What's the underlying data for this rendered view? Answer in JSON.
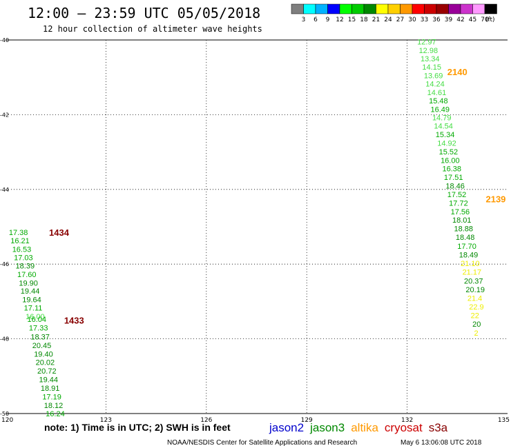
{
  "header": {
    "title": "12:00 — 23:59 UTC 05/05/2018",
    "subtitle": "12 hour collection of altimeter wave heights"
  },
  "color_scale": {
    "unit": "(ft)",
    "bins": [
      {
        "label": "3",
        "color": "#7f7f7f"
      },
      {
        "label": "6",
        "color": "#00ffff"
      },
      {
        "label": "9",
        "color": "#00b2ff"
      },
      {
        "label": "12",
        "color": "#0000ff"
      },
      {
        "label": "15",
        "color": "#00ff00"
      },
      {
        "label": "18",
        "color": "#00cc00"
      },
      {
        "label": "21",
        "color": "#008800"
      },
      {
        "label": "24",
        "color": "#ffff00"
      },
      {
        "label": "27",
        "color": "#ffd000"
      },
      {
        "label": "30",
        "color": "#ff9900"
      },
      {
        "label": "33",
        "color": "#ff0000"
      },
      {
        "label": "36",
        "color": "#cc0000"
      },
      {
        "label": "39",
        "color": "#990000"
      },
      {
        "label": "42",
        "color": "#990099"
      },
      {
        "label": "45",
        "color": "#cc33cc"
      },
      {
        "label": "70",
        "color": "#ff99ff"
      },
      {
        "label": "",
        "color": "#000000"
      }
    ]
  },
  "footer": {
    "note": "note: 1) Time is in UTC; 2) SWH is in feet",
    "satellites": [
      {
        "name": "jason2",
        "color": "#0000cc"
      },
      {
        "name": "jason3",
        "color": "#008800"
      },
      {
        "name": "altika",
        "color": "#ff9900"
      },
      {
        "name": "cryosat",
        "color": "#cc0000"
      },
      {
        "name": "s3a",
        "color": "#880000"
      }
    ],
    "credit": "NOAA/NESDIS Center for Satellite Applications and Research",
    "timestamp": "May  6 13:06:08 UTC 2018"
  },
  "chart_data": {
    "type": "scatter",
    "xlim": [
      120,
      135
    ],
    "ylim": [
      -50,
      -40
    ],
    "x_ticks": [
      "120",
      "123",
      "126",
      "129",
      "132",
      "135"
    ],
    "y_ticks": [
      "-40",
      "-42",
      "-44",
      "-46",
      "-48",
      "-50"
    ],
    "grid": true,
    "time_labels": [
      {
        "text": "2140",
        "x": 133.2,
        "y": -40.85,
        "color": "#ff9900"
      },
      {
        "text": "2139",
        "x": 134.35,
        "y": -44.25,
        "color": "#ff9900"
      },
      {
        "text": "1434",
        "x": 121.3,
        "y": -45.15,
        "color": "#880000"
      },
      {
        "text": "1433",
        "x": 121.75,
        "y": -47.5,
        "color": "#880000"
      }
    ],
    "tracks": [
      {
        "name": "altika",
        "points": [
          {
            "x": 132.3,
            "y": -40.05,
            "value": "12.97",
            "color": "#44dd44"
          },
          {
            "x": 132.35,
            "y": -40.28,
            "value": "12.98",
            "color": "#44dd44"
          },
          {
            "x": 132.4,
            "y": -40.5,
            "value": "13.34",
            "color": "#44dd44"
          },
          {
            "x": 132.45,
            "y": -40.72,
            "value": "14.15",
            "color": "#44dd44"
          },
          {
            "x": 132.5,
            "y": -40.95,
            "value": "13.69",
            "color": "#44dd44"
          },
          {
            "x": 132.55,
            "y": -41.17,
            "value": "14.24",
            "color": "#44dd44"
          },
          {
            "x": 132.6,
            "y": -41.4,
            "value": "14.61",
            "color": "#44dd44"
          },
          {
            "x": 132.65,
            "y": -41.62,
            "value": "15.48",
            "color": "#00aa00"
          },
          {
            "x": 132.7,
            "y": -41.85,
            "value": "16.49",
            "color": "#00aa00"
          },
          {
            "x": 132.75,
            "y": -42.08,
            "value": "14.79",
            "color": "#44dd44"
          },
          {
            "x": 132.8,
            "y": -42.3,
            "value": "14.54",
            "color": "#44dd44"
          },
          {
            "x": 132.85,
            "y": -42.53,
            "value": "15.34",
            "color": "#00aa00"
          },
          {
            "x": 132.9,
            "y": -42.76,
            "value": "14.92",
            "color": "#44dd44"
          },
          {
            "x": 132.95,
            "y": -42.99,
            "value": "15.52",
            "color": "#00aa00"
          },
          {
            "x": 133.0,
            "y": -43.22,
            "value": "16.00",
            "color": "#00aa00"
          },
          {
            "x": 133.05,
            "y": -43.44,
            "value": "16.38",
            "color": "#00aa00"
          },
          {
            "x": 133.1,
            "y": -43.67,
            "value": "17.51",
            "color": "#00aa00"
          },
          {
            "x": 133.15,
            "y": -43.9,
            "value": "18.46",
            "color": "#008800"
          },
          {
            "x": 133.2,
            "y": -44.13,
            "value": "17.52",
            "color": "#00aa00"
          },
          {
            "x": 133.25,
            "y": -44.36,
            "value": "17.72",
            "color": "#00aa00"
          },
          {
            "x": 133.3,
            "y": -44.59,
            "value": "17.56",
            "color": "#00aa00"
          },
          {
            "x": 133.35,
            "y": -44.82,
            "value": "18.01",
            "color": "#008800"
          },
          {
            "x": 133.4,
            "y": -45.05,
            "value": "18.88",
            "color": "#008800"
          },
          {
            "x": 133.45,
            "y": -45.28,
            "value": "18.48",
            "color": "#008800"
          },
          {
            "x": 133.5,
            "y": -45.52,
            "value": "17.70",
            "color": "#00aa00"
          },
          {
            "x": 133.55,
            "y": -45.75,
            "value": "18.49",
            "color": "#008800"
          },
          {
            "x": 133.6,
            "y": -45.98,
            "value": "21.10",
            "color": "#eeee00"
          },
          {
            "x": 133.65,
            "y": -46.21,
            "value": "21.17",
            "color": "#eeee00"
          },
          {
            "x": 133.7,
            "y": -46.45,
            "value": "20.37",
            "color": "#008800"
          },
          {
            "x": 133.75,
            "y": -46.68,
            "value": "20.19",
            "color": "#008800"
          },
          {
            "x": 133.8,
            "y": -46.91,
            "value": "21.4",
            "color": "#eeee00"
          },
          {
            "x": 133.85,
            "y": -47.14,
            "value": "22.9",
            "color": "#eeee00"
          },
          {
            "x": 133.9,
            "y": -47.37,
            "value": "22",
            "color": "#eeee00"
          },
          {
            "x": 133.95,
            "y": -47.6,
            "value": "20",
            "color": "#008800"
          },
          {
            "x": 134.0,
            "y": -47.84,
            "value": "2",
            "color": "#eeee00"
          }
        ]
      },
      {
        "name": "s3a",
        "points": [
          {
            "x": 120.1,
            "y": -45.15,
            "value": "17.38",
            "color": "#00aa00"
          },
          {
            "x": 120.15,
            "y": -45.37,
            "value": "16.21",
            "color": "#00aa00"
          },
          {
            "x": 120.2,
            "y": -45.6,
            "value": "16.53",
            "color": "#00aa00"
          },
          {
            "x": 120.25,
            "y": -45.82,
            "value": "17.03",
            "color": "#00aa00"
          },
          {
            "x": 120.3,
            "y": -46.04,
            "value": "18.39",
            "color": "#008800"
          },
          {
            "x": 120.35,
            "y": -46.27,
            "value": "17.60",
            "color": "#00aa00"
          },
          {
            "x": 120.4,
            "y": -46.5,
            "value": "19.90",
            "color": "#008800"
          },
          {
            "x": 120.45,
            "y": -46.72,
            "value": "19.44",
            "color": "#008800"
          },
          {
            "x": 120.5,
            "y": -46.95,
            "value": "19.64",
            "color": "#008800"
          },
          {
            "x": 120.55,
            "y": -47.17,
            "value": "17.11",
            "color": "#00aa00"
          },
          {
            "x": 120.6,
            "y": -47.4,
            "value": "16.00",
            "color": "#44dd44"
          },
          {
            "x": 120.65,
            "y": -47.47,
            "value": "16.04",
            "color": "#00aa00"
          },
          {
            "x": 120.7,
            "y": -47.7,
            "value": "17.33",
            "color": "#00aa00"
          },
          {
            "x": 120.75,
            "y": -47.94,
            "value": "18.37",
            "color": "#008800"
          },
          {
            "x": 120.8,
            "y": -48.17,
            "value": "20.45",
            "color": "#008800"
          },
          {
            "x": 120.85,
            "y": -48.4,
            "value": "19.40",
            "color": "#008800"
          },
          {
            "x": 120.9,
            "y": -48.63,
            "value": "20.02",
            "color": "#008800"
          },
          {
            "x": 120.95,
            "y": -48.86,
            "value": "20.72",
            "color": "#008800"
          },
          {
            "x": 121.0,
            "y": -49.09,
            "value": "19.44",
            "color": "#008800"
          },
          {
            "x": 121.05,
            "y": -49.32,
            "value": "18.91",
            "color": "#008800"
          },
          {
            "x": 121.1,
            "y": -49.55,
            "value": "17.19",
            "color": "#00aa00"
          },
          {
            "x": 121.15,
            "y": -49.78,
            "value": "18.12",
            "color": "#008800"
          },
          {
            "x": 121.2,
            "y": -50.0,
            "value": "16.24",
            "color": "#00aa00"
          }
        ]
      }
    ]
  }
}
